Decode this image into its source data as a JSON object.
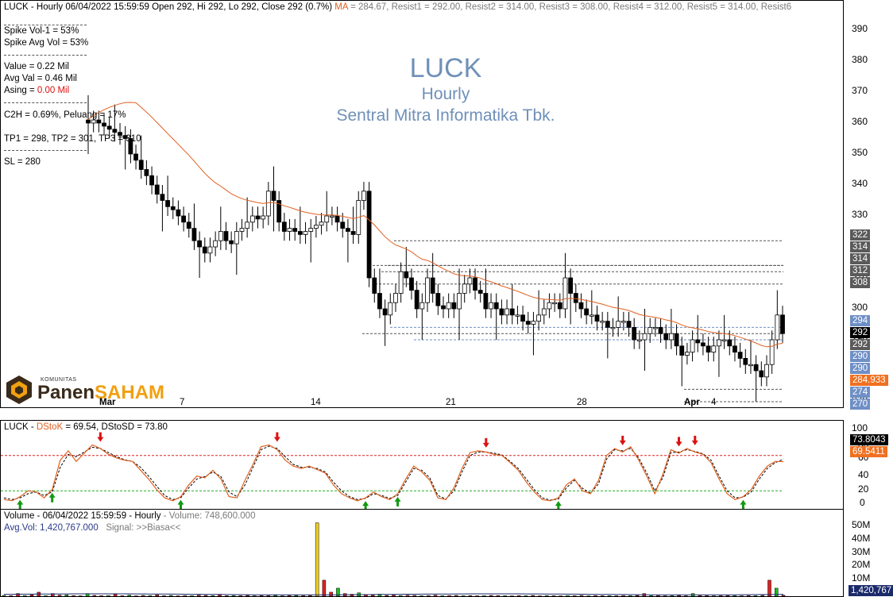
{
  "header": {
    "symbol": "LUCK",
    "timeframe_label": "Hourly",
    "datetime": "06/04/2022 15:59:59",
    "open_label": "Open 292",
    "high_label": "Hi 292",
    "low_label": "Lo 292",
    "close_label": "Close 292 (0.7%)",
    "ma_label": "MA",
    "ma_value": "= 284.67,",
    "resists": [
      "Resist1 = 292.00,",
      "Resist2 = 314.00,",
      "Resist3 = 308.00,",
      "Resist4 = 312.00,",
      "Resist5 = 314.00,",
      "Resist6"
    ]
  },
  "info": {
    "spike_vol": "Spike Vol-1     = 53%",
    "spike_avg": "Spike Avg Vol  = 53%",
    "value": "Value    = 0.22 Mil",
    "avg_val": "Avg Val  = 0.46 Mil",
    "asing_label": "Asing   =",
    "asing_value": "0.00 Mil",
    "c2h": "C2H = 0.69%,   Peluang = 17%",
    "tp": "TP1 = 298, TP2 = 301, TP3 = 310",
    "sl": "SL = 280"
  },
  "watermark": {
    "ticker": "LUCK",
    "timeframe": "Hourly",
    "company": "Sentral Mitra Informatika Tbk."
  },
  "logo": {
    "small": "KOMUNITAS",
    "part1": "Panen",
    "part2": "SAHAM"
  },
  "x_axis": {
    "labels": [
      "Mar",
      "7",
      "14",
      "21",
      "28",
      "Apr",
      "4"
    ]
  },
  "price_axis": {
    "ticks": [
      "390",
      "380",
      "370",
      "360",
      "350",
      "340",
      "330",
      "320",
      "310",
      "300",
      "290",
      "280",
      "270"
    ],
    "tags": [
      {
        "text": "322",
        "bg": "#5a5a5a",
        "fg": "#ffffff"
      },
      {
        "text": "314",
        "bg": "#5a5a5a",
        "fg": "#ffffff"
      },
      {
        "text": "314",
        "bg": "#5a5a5a",
        "fg": "#ffffff"
      },
      {
        "text": "312",
        "bg": "#5a5a5a",
        "fg": "#ffffff"
      },
      {
        "text": "308",
        "bg": "#5a5a5a",
        "fg": "#ffffff"
      },
      {
        "text": "294",
        "bg": "#6e8fc6",
        "fg": "#ffffff"
      },
      {
        "text": "292",
        "bg": "#000000",
        "fg": "#ffffff"
      },
      {
        "text": "292",
        "bg": "#5a5a5a",
        "fg": "#ffffff"
      },
      {
        "text": "290",
        "bg": "#6e8fc6",
        "fg": "#ffffff"
      },
      {
        "text": "290",
        "bg": "#6e8fc6",
        "fg": "#ffffff"
      },
      {
        "text": "284.933",
        "bg": "#f07020",
        "fg": "#ffffff"
      },
      {
        "text": "274",
        "bg": "#6e8fc6",
        "fg": "#ffffff"
      },
      {
        "text": "270",
        "bg": "#6e8fc6",
        "fg": "#ffffff"
      }
    ]
  },
  "stoch": {
    "title_symbol": "LUCK",
    "title_dstok": "DStoK",
    "title_dstok_value": "= 69.54,",
    "title_dstosd": "DStoSD = 73.80",
    "ticks": [
      "100",
      "80",
      "60",
      "40",
      "20",
      "0"
    ],
    "tag_sd": "73.8043",
    "tag_k": "69.5411"
  },
  "volume": {
    "title": "Volume - 06/04/2022 15:59:59 - Hourly",
    "title_value": "- Volume: 748,600.000",
    "avg": "Avg.Vol: 1,420,767.000",
    "signal": "Signal: >>Biasa<<",
    "ticks": [
      "50M",
      "40M",
      "30M",
      "20M",
      "10M"
    ],
    "tag": "1,420,767"
  },
  "colors": {
    "ma": "#e06020",
    "stoch_k": "#e06020",
    "stoch_sd": "#000000",
    "up_arrow": "#119911",
    "down_arrow": "#dd1111",
    "resist_line": "#555555",
    "overbought": "#dd2222",
    "oversold": "#22aa22"
  },
  "chart_data": [
    {
      "type": "candlestick",
      "title": "LUCK Hourly",
      "y_range": [
        265,
        395
      ],
      "x_labels": [
        "Mar",
        "7",
        "14",
        "21",
        "28",
        "Apr",
        "4"
      ],
      "closes": [
        360,
        361,
        360,
        359,
        358,
        357,
        356,
        355,
        350,
        348,
        345,
        343,
        340,
        337,
        335,
        333,
        332,
        330,
        328,
        326,
        322,
        320,
        318,
        320,
        322,
        325,
        322,
        321,
        325,
        326,
        328,
        330,
        329,
        330,
        338,
        335,
        328,
        325,
        326,
        325,
        324,
        325,
        326,
        327,
        328,
        330,
        330,
        328,
        326,
        325,
        324,
        335,
        338,
        310,
        305,
        300,
        298,
        302,
        305,
        312,
        310,
        306,
        300,
        302,
        310,
        305,
        301,
        300,
        302,
        300,
        305,
        308,
        310,
        306,
        305,
        300,
        302,
        300,
        298,
        300,
        298,
        298,
        296,
        295,
        296,
        298,
        300,
        302,
        302,
        300,
        310,
        305,
        302,
        300,
        298,
        298,
        296,
        296,
        294,
        294,
        296,
        296,
        294,
        290,
        290,
        292,
        294,
        294,
        292,
        290,
        292,
        288,
        285,
        286,
        290,
        289,
        288,
        286,
        288,
        290,
        290,
        288,
        286,
        284,
        282,
        282,
        280,
        278,
        282,
        290,
        298,
        292
      ],
      "ma": 284.67,
      "last": {
        "open": 292,
        "high": 292,
        "low": 292,
        "close": 292,
        "change_pct": 0.7
      },
      "resistance": [
        292,
        314,
        308,
        312,
        314,
        322
      ],
      "support": [
        274,
        270
      ]
    },
    {
      "type": "line",
      "title": "DStoK / DStoSD",
      "y_range": [
        0,
        100
      ],
      "series": [
        {
          "name": "DStoK",
          "values": [
            5,
            3,
            10,
            20,
            18,
            8,
            22,
            72,
            88,
            70,
            84,
            98,
            92,
            82,
            76,
            72,
            70,
            55,
            40,
            22,
            8,
            3,
            10,
            30,
            45,
            42,
            55,
            40,
            10,
            8,
            38,
            65,
            95,
            98,
            90,
            72,
            62,
            58,
            62,
            56,
            50,
            30,
            15,
            8,
            3,
            8,
            18,
            10,
            5,
            15,
            40,
            62,
            52,
            38,
            8,
            5,
            25,
            58,
            85,
            88,
            86,
            82,
            80,
            68,
            55,
            35,
            18,
            5,
            3,
            8,
            30,
            40,
            20,
            15,
            38,
            80,
            92,
            86,
            95,
            72,
            45,
            15,
            48,
            90,
            84,
            92,
            86,
            82,
            68,
            40,
            15,
            5,
            10,
            22,
            45,
            62,
            70,
            69.54
          ]
        },
        {
          "name": "DStoSD",
          "values": [
            8,
            5,
            8,
            15,
            18,
            12,
            18,
            60,
            82,
            78,
            86,
            94,
            92,
            85,
            78,
            73,
            70,
            60,
            45,
            28,
            12,
            5,
            8,
            25,
            40,
            44,
            52,
            44,
            18,
            10,
            30,
            60,
            90,
            96,
            92,
            78,
            65,
            60,
            60,
            58,
            52,
            35,
            20,
            10,
            5,
            7,
            15,
            12,
            7,
            12,
            35,
            58,
            55,
            42,
            12,
            6,
            20,
            52,
            80,
            86,
            86,
            84,
            81,
            70,
            58,
            40,
            22,
            8,
            4,
            6,
            25,
            38,
            24,
            16,
            32,
            74,
            90,
            88,
            92,
            76,
            50,
            20,
            42,
            85,
            86,
            90,
            87,
            83,
            72,
            45,
            20,
            8,
            9,
            18,
            40,
            58,
            68,
            73.8
          ]
        }
      ],
      "levels": {
        "overbought": 80,
        "oversold": 20
      },
      "latest": {
        "DStoK": 69.54,
        "DStoSD": 73.8
      }
    },
    {
      "type": "bar",
      "title": "Volume - 06/04/2022 15:59:59 - Hourly",
      "y_range": [
        0,
        55
      ],
      "y_unit": "M",
      "values": [
        0.6,
        0.4,
        2.0,
        0.5,
        1.0,
        3.0,
        0.4,
        2.0,
        0.8,
        1.0,
        0.5,
        0.3,
        2.0,
        0.6,
        0.4,
        0.5,
        1.5,
        0.4,
        0.8,
        0.3,
        0.6,
        0.5,
        1.0,
        0.4,
        0.6,
        0.3,
        0.5,
        0.4,
        0.8,
        0.6,
        0.5,
        1.0,
        0.4,
        0.5,
        0.4,
        0.6,
        0.3,
        0.5,
        0.4,
        0.7,
        0.3,
        0.5,
        0.6,
        0.4,
        0.5,
        55.0,
        12.0,
        3.0,
        6.0,
        2.0,
        1.5,
        2.5,
        1.0,
        0.8,
        1.5,
        0.6,
        0.9,
        0.5,
        0.7,
        0.6,
        0.4,
        0.5,
        0.8,
        0.4,
        0.5,
        0.6,
        0.4,
        0.5,
        0.3,
        0.4,
        0.6,
        0.5,
        0.4,
        0.3,
        0.5,
        0.4,
        0.6,
        0.3,
        0.5,
        0.4,
        0.3,
        0.5,
        0.4,
        0.6,
        0.3,
        0.5,
        0.4,
        0.4,
        0.3,
        0.5,
        0.4,
        0.6,
        2.0,
        0.4,
        0.5,
        0.3,
        0.4,
        0.6,
        0.3,
        2.0,
        0.5,
        0.4,
        0.3,
        0.4,
        0.5,
        0.4,
        0.3,
        0.5,
        0.4,
        0.6,
        12.0,
        6.0,
        0.75
      ],
      "avg_volume": 1420767,
      "last_volume": 748600
    }
  ]
}
